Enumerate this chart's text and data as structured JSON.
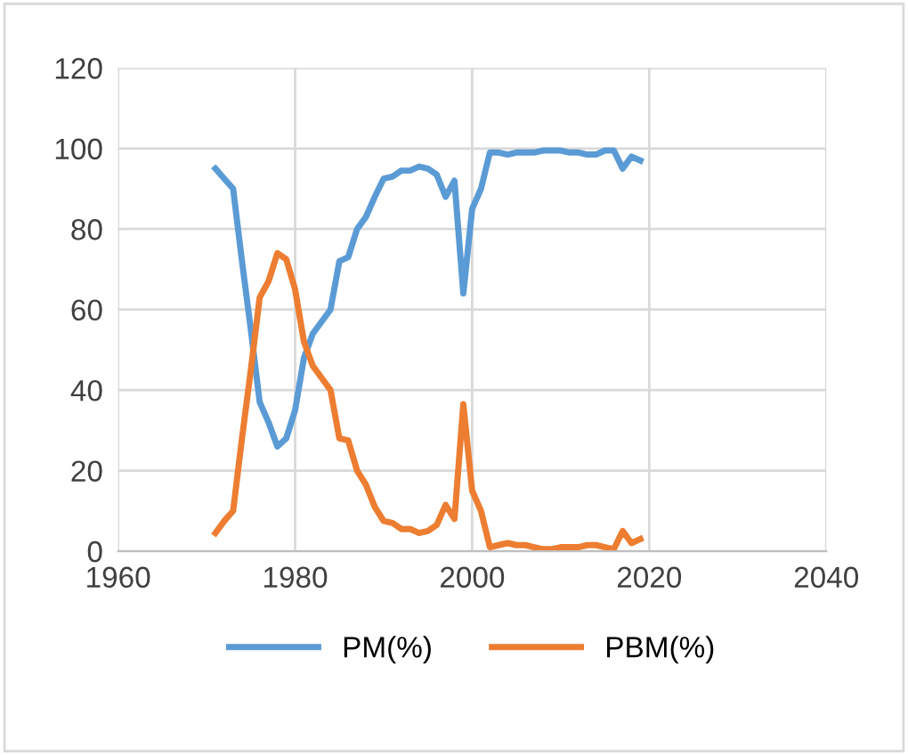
{
  "chart_data": {
    "type": "line",
    "x": [
      1971,
      1972,
      1973,
      1974,
      1975,
      1976,
      1977,
      1978,
      1979,
      1980,
      1981,
      1982,
      1983,
      1984,
      1985,
      1986,
      1987,
      1988,
      1989,
      1990,
      1991,
      1992,
      1993,
      1994,
      1995,
      1996,
      1997,
      1998,
      1999,
      2000,
      2001,
      2002,
      2003,
      2004,
      2005,
      2006,
      2007,
      2008,
      2009,
      2010,
      2011,
      2012,
      2013,
      2014,
      2015,
      2016,
      2017,
      2018,
      2019
    ],
    "series": [
      {
        "name": "PM(%)",
        "color": "#5b9bd5",
        "values": [
          95,
          92.5,
          90,
          72,
          55,
          37,
          32,
          26,
          28,
          35,
          48,
          54,
          57,
          60,
          72,
          73,
          80,
          83,
          88,
          92.5,
          93,
          94.5,
          94.5,
          95.5,
          95,
          93.5,
          88,
          92,
          64,
          85,
          90,
          99,
          99,
          98.5,
          99,
          99,
          99,
          99.5,
          99.5,
          99.5,
          99,
          99,
          98.5,
          98.5,
          99.5,
          99.5,
          95,
          98,
          97
        ]
      },
      {
        "name": "PBM(%)",
        "color": "#ed7d31",
        "values": [
          4.5,
          7.5,
          10,
          28,
          45,
          63,
          67,
          74,
          72.5,
          65,
          52,
          46,
          43,
          40,
          28,
          27.5,
          20,
          16.5,
          11,
          7.5,
          7,
          5.5,
          5.5,
          4.5,
          5,
          6.5,
          11.5,
          8,
          36.5,
          15,
          10,
          1,
          1.5,
          2,
          1.5,
          1.5,
          1,
          0.5,
          0.5,
          1,
          1,
          1,
          1.5,
          1.5,
          1,
          0.5,
          5,
          2,
          3
        ]
      }
    ],
    "xlim": [
      1960,
      2040
    ],
    "xticks": [
      1960,
      1980,
      2000,
      2020,
      2040
    ],
    "ylim": [
      0,
      120
    ],
    "yticks": [
      0,
      20,
      40,
      60,
      80,
      100,
      120
    ],
    "grid": true,
    "legend": "bottom",
    "marker": "none",
    "line_style": "solid"
  }
}
